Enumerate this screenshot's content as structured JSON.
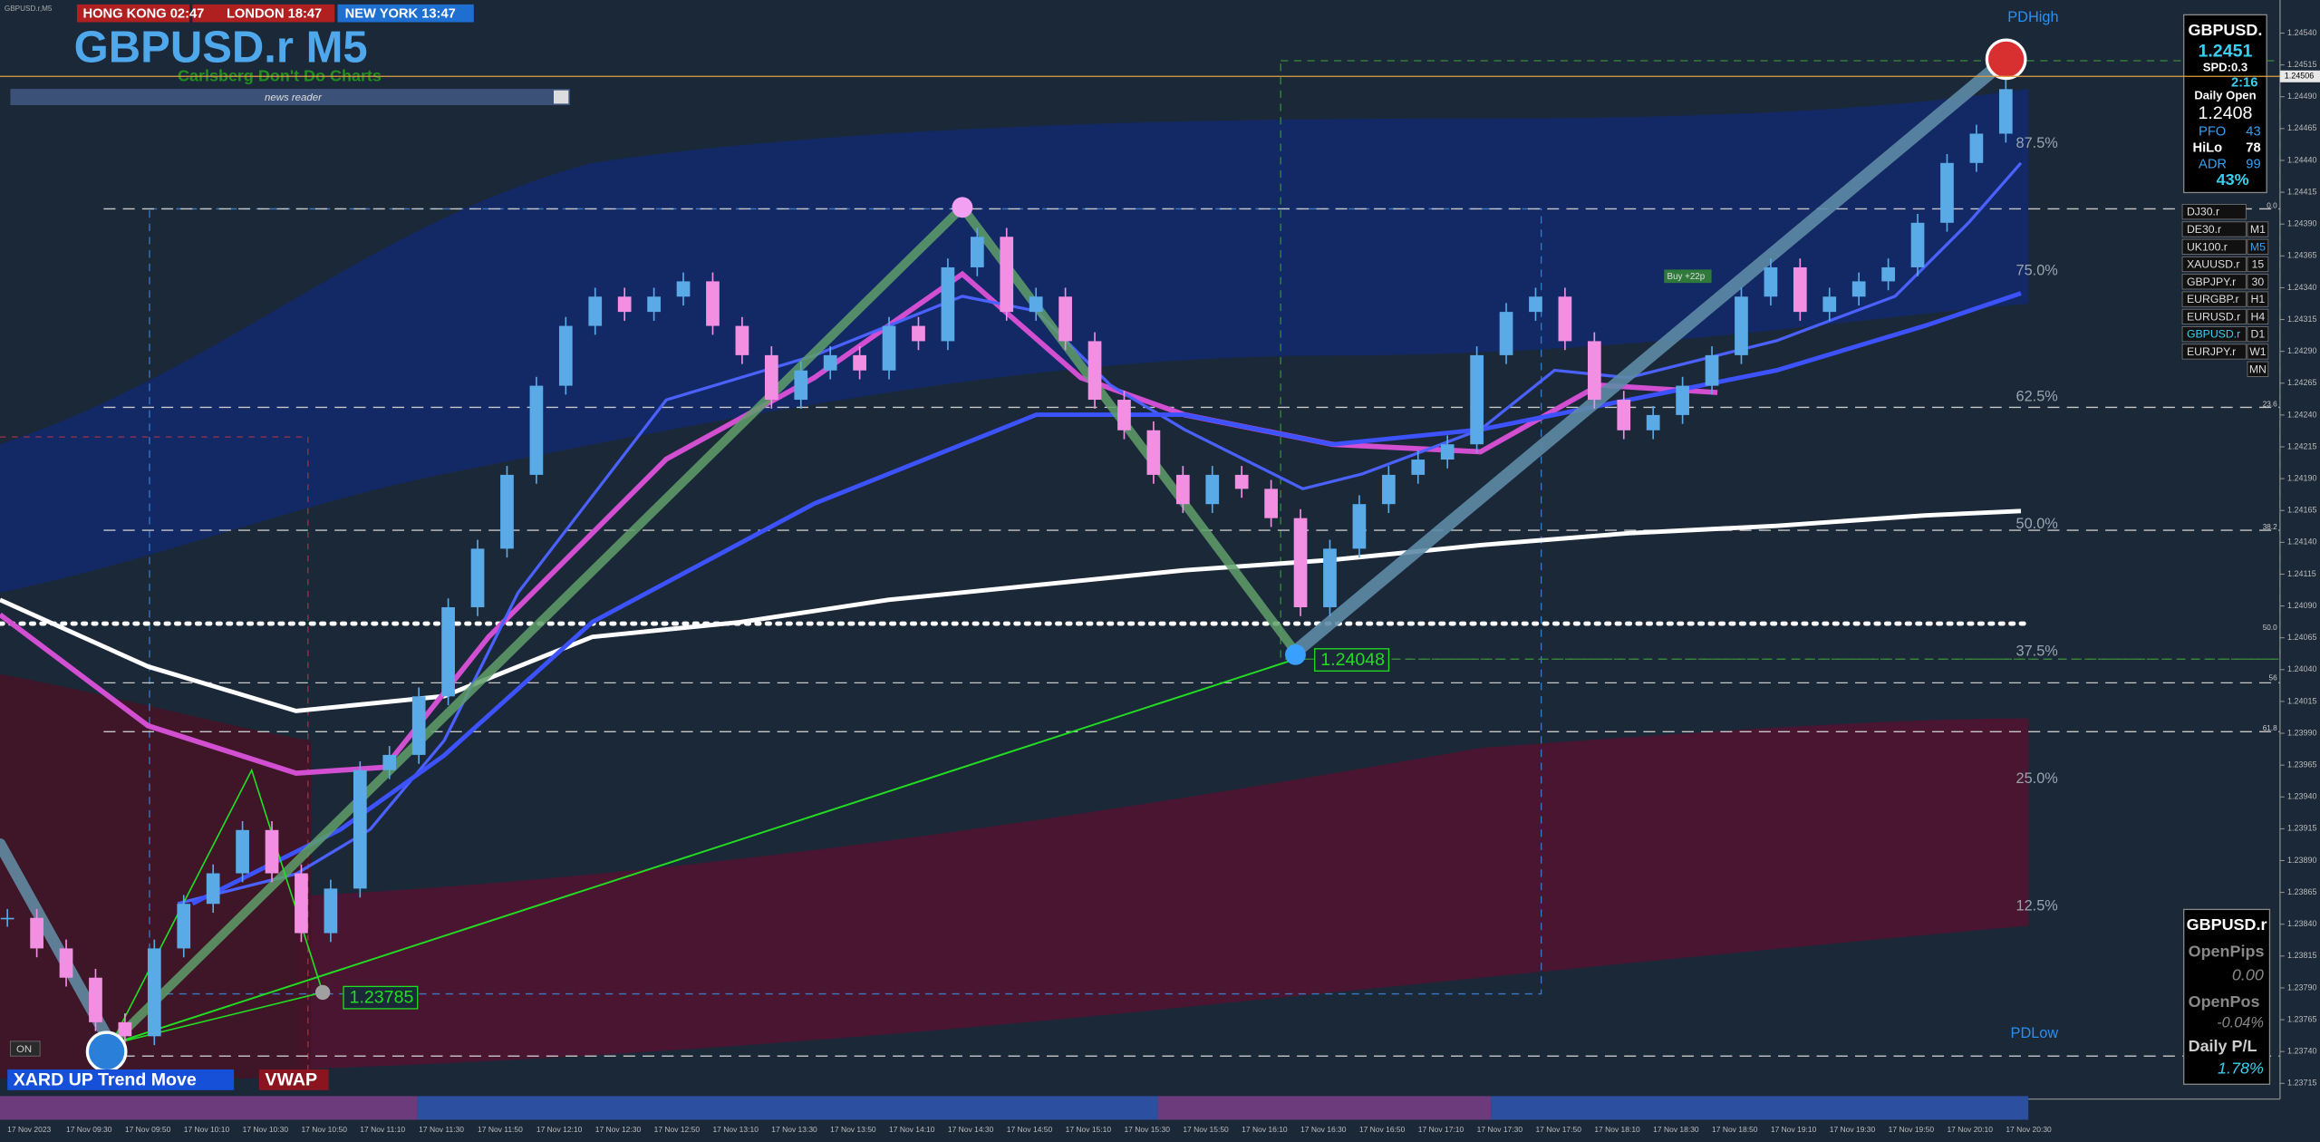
{
  "header": {
    "chart_label": "GBPUSD.r,M5",
    "sessions": [
      "HONG KONG 02:47",
      "LONDON 18:47",
      "NEW YORK 13:47"
    ],
    "title": "GBPUSD.r M5",
    "subtitle": "Carlsberg Don't Do Charts",
    "news_reader": "news reader"
  },
  "chart": {
    "type": "candlestick",
    "closes": [
      1.23845,
      1.23821,
      1.23798,
      1.23763,
      1.23752,
      1.23821,
      1.23856,
      1.2388,
      1.23914,
      1.2388,
      1.23833,
      1.23868,
      1.23961,
      1.23973,
      1.24019,
      1.24089,
      1.24135,
      1.24193,
      1.24263,
      1.2431,
      1.24333,
      1.24321,
      1.24333,
      1.24345,
      1.2431,
      1.24287,
      1.24252,
      1.24275,
      1.24287,
      1.24275,
      1.2431,
      1.24298,
      1.24356,
      1.2438,
      1.24321,
      1.24333,
      1.24298,
      1.24252,
      1.24228,
      1.24193,
      1.2417,
      1.24193,
      1.24182,
      1.24159,
      1.24089,
      1.24135,
      1.2417,
      1.24193,
      1.24205,
      1.24217,
      1.24287,
      1.24321,
      1.24333,
      1.24298,
      1.24252,
      1.24228,
      1.2424,
      1.24263,
      1.24287,
      1.24333,
      1.24356,
      1.24321,
      1.24333,
      1.24345,
      1.24356,
      1.24391,
      1.24438,
      1.24461,
      1.24496
    ],
    "up_color": "#5aaae8",
    "down_color": "#f28fe2",
    "ylim": [
      1.23705,
      1.24566
    ],
    "yticks": [
      {
        "value": 1.2454,
        "label": "1.24540"
      },
      1.24515,
      {
        "value": 1.2449,
        "label": "1.24490"
      },
      1.24465,
      {
        "value": 1.2444,
        "label": "1.24440"
      },
      1.24415,
      {
        "value": 1.2439,
        "label": "1.24390"
      },
      1.24365,
      {
        "value": 1.2434,
        "label": "1.24340"
      },
      1.24315,
      {
        "value": 1.2429,
        "label": "1.24290"
      },
      1.24265,
      {
        "value": 1.2424,
        "label": "1.24240"
      },
      1.24215,
      {
        "value": 1.2419,
        "label": "1.24190"
      },
      1.24165,
      {
        "value": 1.2414,
        "label": "1.24140"
      },
      1.24115,
      {
        "value": 1.2409,
        "label": "1.24090"
      },
      1.24065,
      {
        "value": 1.2404,
        "label": "1.24040"
      },
      1.24015,
      {
        "value": 1.2399,
        "label": "1.23990"
      },
      1.23965,
      {
        "value": 1.2394,
        "label": "1.23940"
      },
      1.23915,
      {
        "value": 1.2389,
        "label": "1.23890"
      },
      1.23865,
      {
        "value": 1.2384,
        "label": "1.23840"
      },
      1.23815,
      {
        "value": 1.2379,
        "label": "1.23790"
      },
      1.23765,
      {
        "value": 1.2374,
        "label": "1.23740"
      },
      1.23715
    ],
    "current_price": 1.24506,
    "time_labels": [
      "17 Nov 2023",
      "17 Nov 09:30",
      "17 Nov 09:50",
      "17 Nov 10:10",
      "17 Nov 10:30",
      "17 Nov 10:50",
      "17 Nov 11:10",
      "17 Nov 11:30",
      "17 Nov 11:50",
      "17 Nov 12:10",
      "17 Nov 12:30",
      "17 Nov 12:50",
      "17 Nov 13:10",
      "17 Nov 13:30",
      "17 Nov 13:50",
      "17 Nov 14:10",
      "17 Nov 14:30",
      "17 Nov 14:50",
      "17 Nov 15:10",
      "17 Nov 15:30",
      "17 Nov 15:50",
      "17 Nov 16:10",
      "17 Nov 16:30",
      "17 Nov 16:50",
      "17 Nov 17:10",
      "17 Nov 17:30",
      "17 Nov 17:50",
      "17 Nov 18:10",
      "17 Nov 18:30",
      "17 Nov 18:50",
      "17 Nov 19:10",
      "17 Nov 19:30",
      "17 Nov 19:50",
      "17 Nov 20:10",
      "17 Nov 20:30"
    ]
  },
  "annotations": {
    "pdhigh": "PDHigh",
    "pdlow": "PDLow",
    "swing_low": "1.24048",
    "start_low": "1.23785",
    "buy": "Buy +22p",
    "trend": "XARD UP Trend Move",
    "vwap": "VWAP",
    "toggle": "ON",
    "fib_levels": [
      "87.5%",
      "75.0%",
      "62.5%",
      "50.0%",
      "37.5%",
      "25.0%",
      "12.5%"
    ],
    "fib_ratios": [
      "0.0",
      "23.6",
      "38.2",
      "50.0",
      "56",
      "61.8"
    ]
  },
  "info_panel": {
    "symbol": "GBPUSD.",
    "price": "1.2451",
    "spread": "SPD:0.3",
    "timer": "2:16",
    "daily_open_label": "Daily Open",
    "daily_open": "1.2408",
    "pfo_label": "PFO",
    "pfo": "43",
    "hilo_label": "HiLo",
    "hilo": "78",
    "adr_label": "ADR",
    "adr": "99",
    "adr_pct": "43%"
  },
  "symbols": [
    {
      "symbol": "DJ30.r"
    },
    {
      "symbol": "DE30.r",
      "tf": "M1"
    },
    {
      "symbol": "UK100.r",
      "tf": "M5"
    },
    {
      "symbol": "XAUUSD.r",
      "tf": "15"
    },
    {
      "symbol": "GBPJPY.r",
      "tf": "30"
    },
    {
      "symbol": "EURGBP.r",
      "tf": "H1"
    },
    {
      "symbol": "EURUSD.r",
      "tf": "H4"
    },
    {
      "symbol": "GBPUSD.r",
      "tf": "D1"
    },
    {
      "symbol": "EURJPY.r",
      "tf": "W1"
    },
    {
      "tf": "MN"
    }
  ],
  "pl_panel": {
    "symbol": "GBPUSD.r",
    "open_pips_label": "OpenPips",
    "open_pips": "0.00",
    "open_pos_label": "OpenPos",
    "open_pos": "-0.04%",
    "daily_pl_label": "Daily P/L",
    "daily_pl": "1.78%"
  }
}
